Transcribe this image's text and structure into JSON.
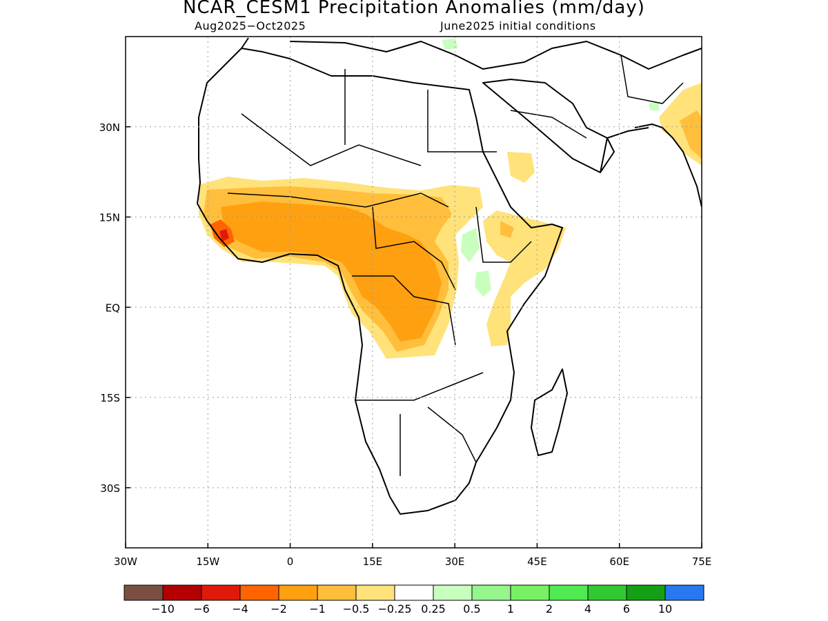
{
  "title": "NCAR_CESM1 Precipitation Anomalies (mm/day)",
  "subtitle_left": "Aug2025−Oct2025",
  "subtitle_right": "June2025 initial conditions",
  "map": {
    "lon_range": [
      -30,
      75
    ],
    "lat_range": [
      -40,
      45
    ],
    "x_ticks": [
      {
        "value": -30,
        "label": "30W"
      },
      {
        "value": -15,
        "label": "15W"
      },
      {
        "value": 0,
        "label": "0"
      },
      {
        "value": 15,
        "label": "15E"
      },
      {
        "value": 30,
        "label": "30E"
      },
      {
        "value": 45,
        "label": "45E"
      },
      {
        "value": 60,
        "label": "60E"
      },
      {
        "value": 75,
        "label": "75E"
      }
    ],
    "y_ticks": [
      {
        "value": 30,
        "label": "30N"
      },
      {
        "value": 15,
        "label": "15N"
      },
      {
        "value": 0,
        "label": "EQ"
      },
      {
        "value": -15,
        "label": "15S"
      },
      {
        "value": -30,
        "label": "30S"
      }
    ],
    "gridlines": true
  },
  "colorbar": {
    "colors": [
      "#7a4f42",
      "#b30000",
      "#e01a0a",
      "#ff6400",
      "#ffa010",
      "#ffbe3c",
      "#ffe27a",
      "#ffffff",
      "#c8ffbe",
      "#96f58c",
      "#78f064",
      "#50eb50",
      "#32c832",
      "#14a014",
      "#2878f0"
    ],
    "labels": [
      "−10",
      "−6",
      "−4",
      "−2",
      "−1",
      "−0.5",
      "−0.25",
      "0.25",
      "0.5",
      "1",
      "2",
      "4",
      "6",
      "10"
    ]
  }
}
